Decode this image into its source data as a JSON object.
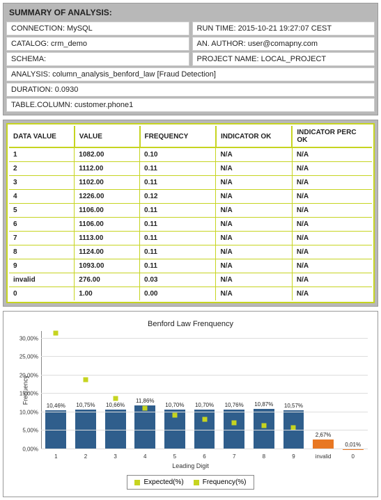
{
  "summary": {
    "title": "SUMMARY OF ANALYSIS:",
    "left": [
      {
        "label": "CONNECTION",
        "value": "MySQL"
      },
      {
        "label": "CATALOG",
        "value": "crm_demo"
      },
      {
        "label": "SCHEMA",
        "value": ""
      }
    ],
    "right": [
      {
        "label": "RUN TIME",
        "value": "2015-10-21 19:27:07 CEST"
      },
      {
        "label": "AN. AUTHOR",
        "value": "user@comapny.com"
      },
      {
        "label": "PROJECT NAME",
        "value": "LOCAL_PROJECT"
      }
    ],
    "full": [
      {
        "label": "ANALYSIS",
        "value": "column_analysis_benford_law [Fraud Detection]"
      },
      {
        "label": "DURATION",
        "value": "0.0930"
      },
      {
        "label": "TABLE.COLUMN",
        "value": "customer.phone1"
      }
    ]
  },
  "table": {
    "columns": [
      "DATA VALUE",
      "VALUE",
      "FREQUENCY",
      "INDICATOR OK",
      "INDICATOR PERC OK"
    ],
    "col_widths": [
      "18%",
      "18%",
      "21%",
      "21%",
      "22%"
    ],
    "rows": [
      [
        "1",
        "1082.00",
        "0.10",
        "N/A",
        "N/A"
      ],
      [
        "2",
        "1112.00",
        "0.11",
        "N/A",
        "N/A"
      ],
      [
        "3",
        "1102.00",
        "0.11",
        "N/A",
        "N/A"
      ],
      [
        "4",
        "1226.00",
        "0.12",
        "N/A",
        "N/A"
      ],
      [
        "5",
        "1106.00",
        "0.11",
        "N/A",
        "N/A"
      ],
      [
        "6",
        "1106.00",
        "0.11",
        "N/A",
        "N/A"
      ],
      [
        "7",
        "1113.00",
        "0.11",
        "N/A",
        "N/A"
      ],
      [
        "8",
        "1124.00",
        "0.11",
        "N/A",
        "N/A"
      ],
      [
        "9",
        "1093.00",
        "0.11",
        "N/A",
        "N/A"
      ],
      [
        "invalid",
        "276.00",
        "0.03",
        "N/A",
        "N/A"
      ],
      [
        "0",
        "1.00",
        "0.00",
        "N/A",
        "N/A"
      ]
    ]
  },
  "chart": {
    "title": "Benford Law Frenquency",
    "type": "bar",
    "y_label": "Frequency",
    "x_label": "Leading Digit",
    "y_max": 32,
    "y_ticks": [
      0,
      5,
      10,
      15,
      20,
      25,
      30
    ],
    "y_tick_labels": [
      "0,00%",
      "5,00%",
      "10,00%",
      "15,00%",
      "20,00%",
      "25,00%",
      "30,00%"
    ],
    "categories": [
      "1",
      "2",
      "3",
      "4",
      "5",
      "6",
      "7",
      "8",
      "9",
      "invalid",
      "0"
    ],
    "bar_values": [
      10.46,
      10.75,
      10.66,
      11.86,
      10.7,
      10.7,
      10.76,
      10.87,
      10.57,
      2.67,
      0.01
    ],
    "bar_labels": [
      "10,46%",
      "10,75%",
      "10,66%",
      "11,86%",
      "10,70%",
      "10,70%",
      "10,76%",
      "10,87%",
      "10,57%",
      "2,67%",
      "0,01%"
    ],
    "bar_colors": [
      "#2f5e8c",
      "#2f5e8c",
      "#2f5e8c",
      "#2f5e8c",
      "#2f5e8c",
      "#2f5e8c",
      "#2f5e8c",
      "#2f5e8c",
      "#2f5e8c",
      "#e87722",
      "#e87722"
    ],
    "expected_values": [
      30.1,
      17.6,
      12.5,
      9.7,
      7.9,
      6.7,
      5.8,
      5.1,
      4.6,
      null,
      null
    ],
    "expected_color": "#c6d420",
    "grid_color": "#dddddd",
    "background": "#ffffff",
    "legend": [
      {
        "label": "Expected(%)",
        "color": "#c6d420"
      },
      {
        "label": "Frequency(%)",
        "color": "#c6d420"
      }
    ]
  }
}
